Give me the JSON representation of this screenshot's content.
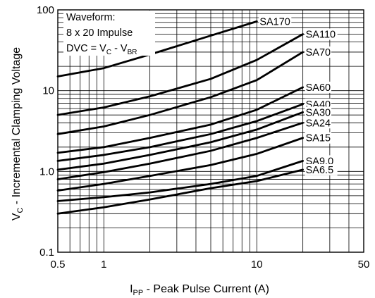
{
  "chart_data": {
    "type": "line",
    "x_scale": "log",
    "y_scale": "log",
    "xlim": [
      0.5,
      50
    ],
    "ylim": [
      0.1,
      100
    ],
    "grid": true,
    "xlabel_main": "I",
    "xlabel_sub": "PP",
    "xlabel_rest": " - Peak Pulse Current (A)",
    "ylabel_main": "V",
    "ylabel_sub": "C",
    "ylabel_rest": " - Incremental Clamping Voltage",
    "x_ticks": [
      {
        "value": 0.5,
        "label": "0.5"
      },
      {
        "value": 1,
        "label": "1"
      },
      {
        "value": 10,
        "label": "10"
      },
      {
        "value": 50,
        "label": "50"
      }
    ],
    "y_ticks": [
      {
        "value": 0.1,
        "label": "0.1"
      },
      {
        "value": 1,
        "label": "1.0"
      },
      {
        "value": 10,
        "label": "10"
      },
      {
        "value": 100,
        "label": "100"
      }
    ],
    "annotation": {
      "line1": "Waveform:",
      "line2": "8 x 20 Impulse",
      "line3_a": "DVC = V",
      "line3_a_sub": "C",
      "line3_b": " - V",
      "line3_b_sub": "BR"
    },
    "series": [
      {
        "name": "SA170",
        "x": [
          0.5,
          1,
          2,
          5,
          10
        ],
        "y": [
          15,
          19,
          28,
          48,
          72
        ]
      },
      {
        "name": "SA110",
        "x": [
          0.5,
          1,
          2,
          5,
          10,
          20
        ],
        "y": [
          5,
          6.2,
          8.5,
          14,
          24,
          50
        ]
      },
      {
        "name": "SA70",
        "x": [
          0.5,
          1,
          2,
          5,
          10,
          20
        ],
        "y": [
          2.9,
          3.6,
          5,
          8.3,
          13.5,
          30
        ]
      },
      {
        "name": "SA60",
        "x": [
          0.5,
          1,
          2,
          5,
          10,
          20
        ],
        "y": [
          1.7,
          2,
          2.6,
          3.8,
          5.8,
          11
        ]
      },
      {
        "name": "SA40",
        "x": [
          0.5,
          1,
          2,
          5,
          10,
          20
        ],
        "y": [
          1.35,
          1.6,
          2,
          2.9,
          4.2,
          6.8
        ]
      },
      {
        "name": "SA30",
        "x": [
          0.5,
          1,
          2,
          5,
          10,
          20
        ],
        "y": [
          1.05,
          1.25,
          1.6,
          2.3,
          3.3,
          5.4
        ]
      },
      {
        "name": "SA24",
        "x": [
          0.5,
          1,
          2,
          5,
          10,
          20
        ],
        "y": [
          0.8,
          0.98,
          1.25,
          1.8,
          2.6,
          4
        ]
      },
      {
        "name": "SA15",
        "x": [
          0.5,
          1,
          2,
          5,
          10,
          20
        ],
        "y": [
          0.58,
          0.7,
          0.88,
          1.2,
          1.65,
          2.6
        ]
      },
      {
        "name": "SA9.0",
        "x": [
          0.5,
          1,
          2,
          5,
          10,
          20
        ],
        "y": [
          0.43,
          0.48,
          0.55,
          0.7,
          0.88,
          1.35
        ]
      },
      {
        "name": "SA6.5",
        "x": [
          0.5,
          1,
          2,
          5,
          10,
          20
        ],
        "y": [
          0.3,
          0.36,
          0.45,
          0.62,
          0.76,
          1.05
        ]
      }
    ]
  }
}
